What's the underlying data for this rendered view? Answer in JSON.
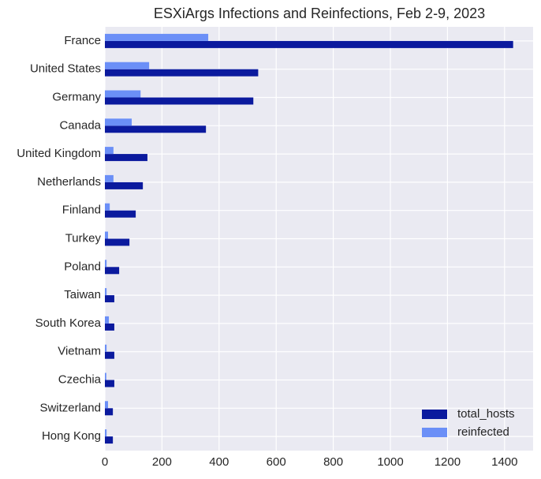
{
  "chart_data": {
    "type": "barh",
    "title": "ESXiArgs Infections and Reinfections, Feb 2-9, 2023",
    "categories": [
      "France",
      "United States",
      "Germany",
      "Canada",
      "United Kingdom",
      "Netherlands",
      "Finland",
      "Turkey",
      "Poland",
      "Taiwan",
      "South Korea",
      "Vietnam",
      "Czechia",
      "Switzerland",
      "Hong Kong"
    ],
    "series": [
      {
        "name": "total_hosts",
        "color": "#0b1a9e",
        "values": [
          1430,
          537,
          520,
          354,
          149,
          133,
          108,
          86,
          50,
          33,
          33,
          33,
          33,
          28,
          28
        ]
      },
      {
        "name": "reinfected",
        "color": "#6b8ff7",
        "values": [
          362,
          155,
          125,
          94,
          30,
          30,
          17,
          11,
          6,
          6,
          14,
          6,
          5,
          11,
          6
        ]
      }
    ],
    "xlim": [
      0,
      1500
    ],
    "xticks": [
      0,
      200,
      400,
      600,
      800,
      1000,
      1200,
      1400
    ],
    "grid": true,
    "legend": "lower right"
  }
}
